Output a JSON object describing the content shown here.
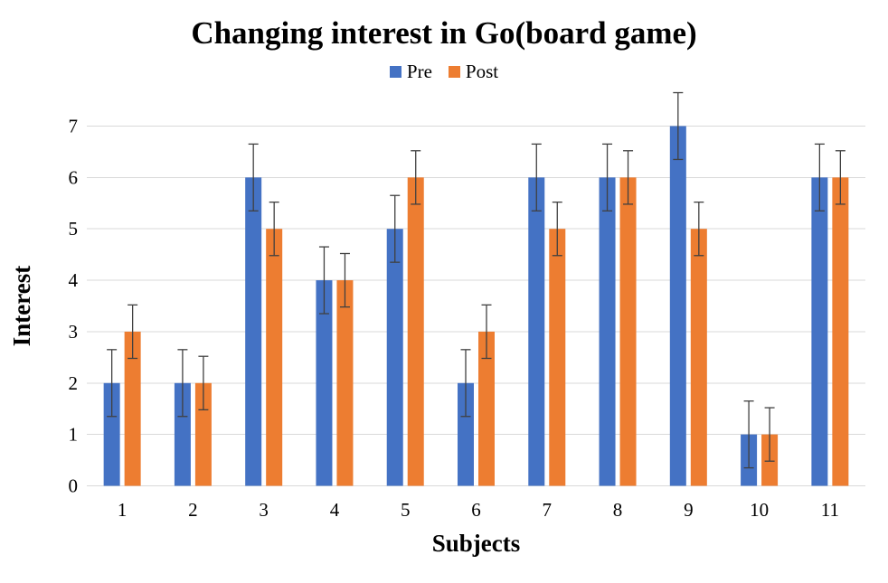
{
  "window": {
    "background_color": "#ffffff"
  },
  "legend": {
    "pre_label": "Pre",
    "post_label": "Post"
  },
  "chart_data": {
    "type": "bar",
    "title": "Changing interest in Go(board game)",
    "xlabel": "Subjects",
    "ylabel": "Interest",
    "categories": [
      "1",
      "2",
      "3",
      "4",
      "5",
      "6",
      "7",
      "8",
      "9",
      "10",
      "11"
    ],
    "series": [
      {
        "name": "Pre",
        "color": "#4472C4",
        "values": [
          2,
          2,
          6,
          4,
          5,
          2,
          6,
          6,
          7,
          1,
          6
        ],
        "error": 0.65
      },
      {
        "name": "Post",
        "color": "#ED7D31",
        "values": [
          3,
          2,
          5,
          4,
          6,
          3,
          5,
          6,
          5,
          1,
          6
        ],
        "error": 0.52
      }
    ],
    "ylim": [
      0,
      7
    ],
    "ytick_step": 1,
    "yticks": [
      0,
      1,
      2,
      3,
      4,
      5,
      6,
      7
    ],
    "grid": true,
    "gridline_color": "#D9D9D9",
    "error_bar_color": "#404040",
    "text_color": "#000000",
    "legend_position": "top-center"
  }
}
